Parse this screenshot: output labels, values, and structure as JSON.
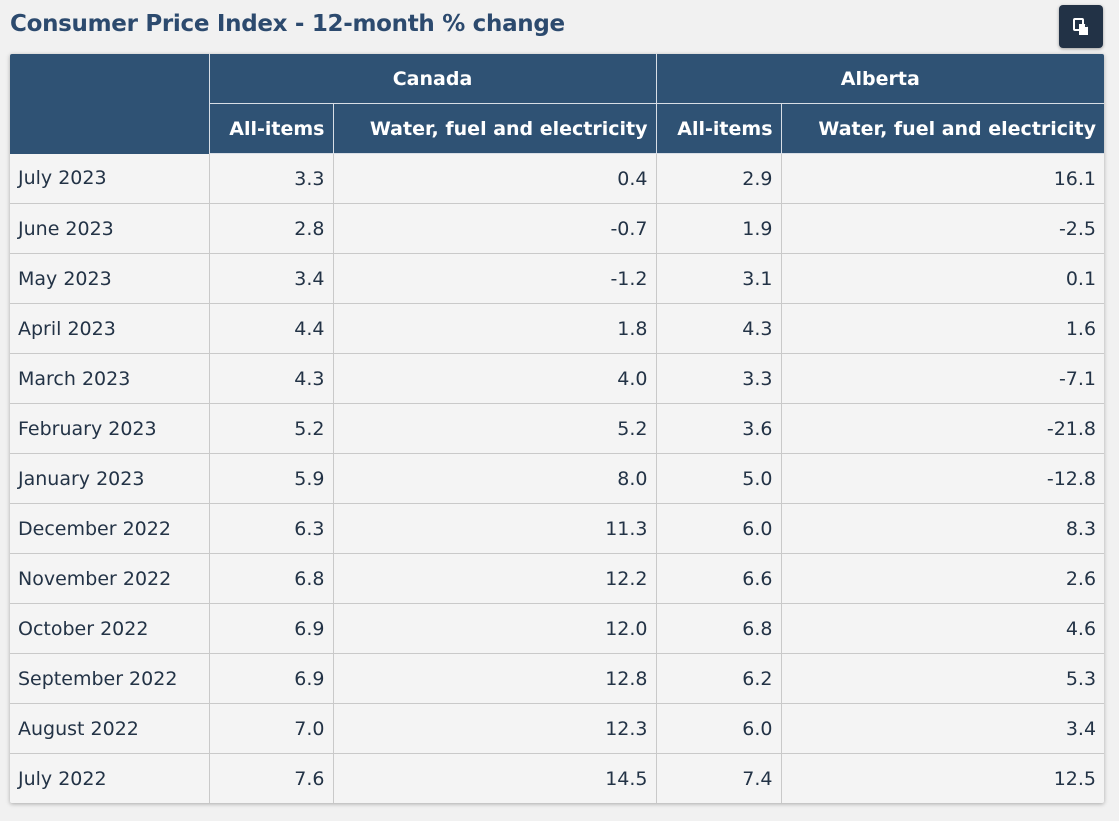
{
  "title": "Consumer Price Index - 12-month % change",
  "copy_button": {
    "icon": "copy-icon"
  },
  "table": {
    "groups": [
      "Canada",
      "Alberta"
    ],
    "subheaders": [
      "All-items",
      "Water, fuel and electricity",
      "All-items",
      "Water, fuel and electricity"
    ],
    "rows": [
      {
        "label": "July 2023",
        "values": [
          "3.3",
          "0.4",
          "2.9",
          "16.1"
        ]
      },
      {
        "label": "June 2023",
        "values": [
          "2.8",
          "-0.7",
          "1.9",
          "-2.5"
        ]
      },
      {
        "label": "May 2023",
        "values": [
          "3.4",
          "-1.2",
          "3.1",
          "0.1"
        ]
      },
      {
        "label": "April 2023",
        "values": [
          "4.4",
          "1.8",
          "4.3",
          "1.6"
        ]
      },
      {
        "label": "March 2023",
        "values": [
          "4.3",
          "4.0",
          "3.3",
          "-7.1"
        ]
      },
      {
        "label": "February 2023",
        "values": [
          "5.2",
          "5.2",
          "3.6",
          "-21.8"
        ]
      },
      {
        "label": "January 2023",
        "values": [
          "5.9",
          "8.0",
          "5.0",
          "-12.8"
        ]
      },
      {
        "label": "December 2022",
        "values": [
          "6.3",
          "11.3",
          "6.0",
          "8.3"
        ]
      },
      {
        "label": "November 2022",
        "values": [
          "6.8",
          "12.2",
          "6.6",
          "2.6"
        ]
      },
      {
        "label": "October 2022",
        "values": [
          "6.9",
          "12.0",
          "6.8",
          "4.6"
        ]
      },
      {
        "label": "September 2022",
        "values": [
          "6.9",
          "12.8",
          "6.2",
          "5.3"
        ]
      },
      {
        "label": "August 2022",
        "values": [
          "7.0",
          "12.3",
          "6.0",
          "3.4"
        ]
      },
      {
        "label": "July 2022",
        "values": [
          "7.6",
          "14.5",
          "7.4",
          "12.5"
        ]
      }
    ]
  },
  "colors": {
    "header_bg": "#2f5274",
    "title": "#2c4a6e",
    "button_bg": "#223246",
    "row_bg": "#f4f4f4"
  }
}
